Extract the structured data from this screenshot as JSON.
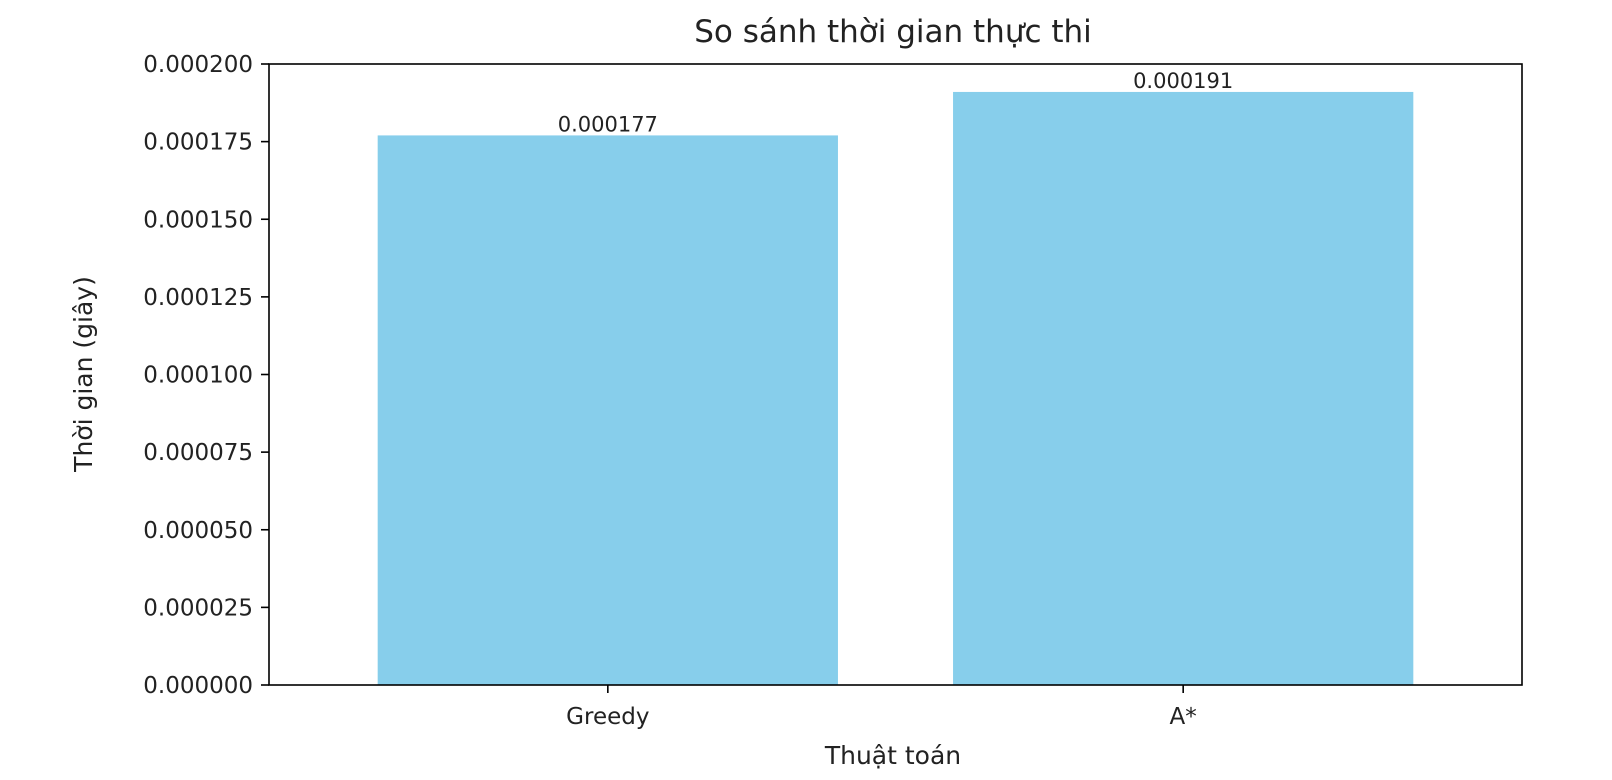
{
  "chart_data": {
    "type": "bar",
    "title": "So sánh thời gian thực thi",
    "xlabel": "Thuật toán",
    "ylabel": "Thời gian (giây)",
    "categories": [
      "Greedy",
      "A*"
    ],
    "values": [
      0.000177,
      0.000191
    ],
    "value_labels": [
      "0.000177",
      "0.000191"
    ],
    "ylim": [
      0,
      0.0002
    ],
    "yticks": [
      0,
      2.5e-05,
      5e-05,
      7.5e-05,
      0.0001,
      0.000125,
      0.00015,
      0.000175,
      0.0002
    ],
    "ytick_labels": [
      "0.000000",
      "0.000025",
      "0.000050",
      "0.000075",
      "0.000100",
      "0.000125",
      "0.000150",
      "0.000175",
      "0.000200"
    ],
    "grid": false,
    "bar_color": "#87ceeb"
  }
}
